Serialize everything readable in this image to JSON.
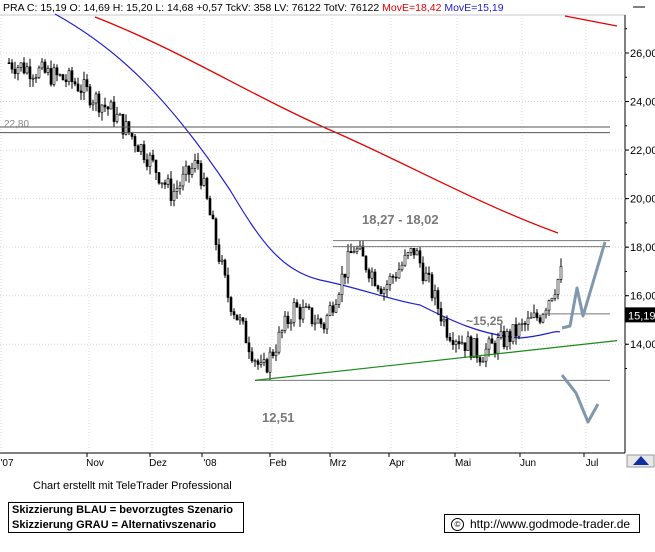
{
  "header": {
    "symbol": "PRA",
    "text": "PRA C: 15,19 O: 14,69 H: 15,20 L: 14,68 +0,57 TckV: 358 LV: 76122 TotV: 76122",
    "move1": "MovE=18,42",
    "move2": "MovE=15,19",
    "colors": {
      "text": "#000000",
      "move1": "#e60000",
      "move2": "#2020d0"
    }
  },
  "chart_data": {
    "type": "candlestick",
    "title": "",
    "x_tick_labels": [
      "'07",
      "Nov",
      "Dez",
      "'08",
      "Feb",
      "Mrz",
      "Apr",
      "Mai",
      "Jun",
      "Jul"
    ],
    "y_tick_labels": [
      "14,00",
      "16,00",
      "18,00",
      "20,00",
      "22,00",
      "24,00",
      "26,00"
    ],
    "y_ticks": [
      14,
      16,
      18,
      20,
      22,
      24,
      26
    ],
    "ylim": [
      12.0,
      27.3
    ],
    "last_price": "15,19",
    "annotations": {
      "resistance_zone": "18,27 - 18,02",
      "low": "12,51",
      "mid_level": "~15,25",
      "left_level": "22,80"
    },
    "horizontal_lines": [
      22.95,
      22.72,
      18.27,
      18.02,
      15.25,
      12.51
    ],
    "support_line": {
      "from": [
        "'08",
        12.51
      ],
      "to": [
        "Jul",
        14.15
      ]
    },
    "price_path_points": [
      [
        "'07",
        25.6
      ],
      [
        "'07",
        24.8
      ],
      [
        "Nov",
        23.6
      ],
      [
        "Nov",
        22.0
      ],
      [
        "Dez",
        20.2
      ],
      [
        "Dez",
        21.5
      ],
      [
        "'08",
        16.0
      ],
      [
        "'08",
        12.8
      ],
      [
        "Feb",
        15.5
      ],
      [
        "Feb",
        14.8
      ],
      [
        "Mrz",
        18.0
      ],
      [
        "Mrz",
        16.3
      ],
      [
        "Apr",
        17.9
      ],
      [
        "Apr",
        14.6
      ],
      [
        "Mai",
        13.6
      ],
      [
        "Mai",
        14.4
      ],
      [
        "Jun",
        15.2
      ],
      [
        "Jun",
        16.9
      ],
      [
        "Jun",
        15.0
      ]
    ],
    "series": [
      {
        "name": "MovE=18,42",
        "color": "#e60000"
      },
      {
        "name": "MovE=15,19",
        "color": "#2020d0"
      }
    ],
    "scenario_colors": {
      "blau": "#7f98ad",
      "grau": "#7f98ad"
    }
  },
  "footer": {
    "credit": "Chart erstellt mit TeleTrader Professional",
    "legend_line1": "Skizzierung BLAU = bevorzugtes Szenario",
    "legend_line2": "Skizzierung GRAU = Alternativszenario",
    "url": "http://www.godmode-trader.de",
    "copyright_symbol": "©"
  }
}
